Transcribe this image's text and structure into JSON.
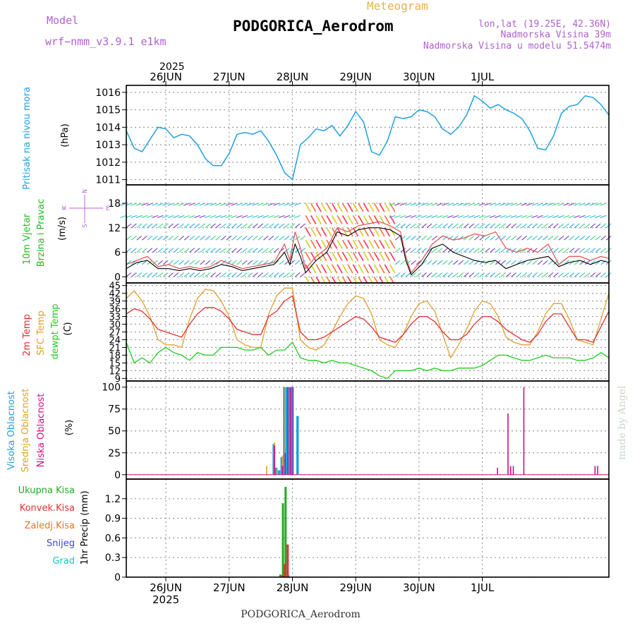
{
  "header": {
    "model_label": "Model",
    "model_name": "wrf−nmm_v3.9.1  e1km",
    "meteogram": "Meteogram",
    "station": "PODGORICA_Aerodrom",
    "lonlat": "lon,lat (19.25E, 42.36N)",
    "elev": "Nadmorska Visina 39m",
    "elev_model": "Nadmorska Visina u modelu 51.5474m",
    "footer_station": "PODGORICA_Aerodrom",
    "credit": "made by Angel",
    "year": "2025"
  },
  "colors": {
    "pressure": "#1fa0e0",
    "wind_label": "#22bb22",
    "compass": "#c060e0",
    "temp2m": "#e03030",
    "sfc": "#e0a030",
    "dew": "#22cc22",
    "cloud_high": "#1fa0e0",
    "cloud_mid": "#e0a030",
    "cloud_low": "#d01080",
    "precip_total": "#22aa22",
    "precip_conv": "#e03030",
    "precip_frozen": "#f07020",
    "snow": "#4040e0",
    "hail": "#20c0c0"
  },
  "chart_data": [
    {
      "type": "line",
      "name": "pressure",
      "ylabel_1": "Pritisak na nivou mora",
      "ylabel_2": "(hPa)",
      "yticks": [
        1011,
        1012,
        1013,
        1014,
        1015,
        1016
      ],
      "ylim": [
        1010.7,
        1016.4
      ],
      "x": [
        0,
        3,
        6,
        9,
        12,
        15,
        18,
        21,
        24,
        27,
        30,
        33,
        36,
        39,
        42,
        45,
        48,
        51,
        54,
        57,
        60,
        63,
        66,
        69,
        72,
        75,
        78,
        81,
        84,
        87,
        90,
        93,
        96,
        99,
        102,
        105,
        108,
        111,
        114,
        117,
        120,
        123,
        126,
        129,
        132,
        135,
        138,
        141,
        144,
        147,
        150,
        153,
        156,
        159,
        162,
        165,
        168,
        171,
        174,
        177,
        180,
        183
      ],
      "series": [
        {
          "name": "pressure",
          "values": [
            1013.8,
            1012.8,
            1012.6,
            1013.3,
            1014.0,
            1013.9,
            1013.4,
            1013.6,
            1013.5,
            1013.0,
            1012.2,
            1011.8,
            1011.8,
            1012.5,
            1013.6,
            1013.7,
            1013.6,
            1013.8,
            1013.2,
            1012.4,
            1011.4,
            1011.0,
            1013.0,
            1013.4,
            1013.9,
            1013.8,
            1014.1,
            1013.5,
            1014.1,
            1014.9,
            1014.3,
            1012.6,
            1012.4,
            1013.2,
            1014.6,
            1014.5,
            1014.6,
            1015.0,
            1014.9,
            1014.6,
            1013.9,
            1013.6,
            1014.0,
            1014.7,
            1015.8,
            1015.5,
            1015.1,
            1015.3,
            1015.0,
            1014.8,
            1014.5,
            1013.8,
            1012.8,
            1012.7,
            1013.5,
            1014.8,
            1015.2,
            1015.3,
            1015.8,
            1015.7,
            1015.3,
            1014.7
          ]
        }
      ]
    },
    {
      "type": "line",
      "name": "wind",
      "ylabel_1": "10m Vjetar",
      "ylabel_2": "Brzina i Pravac",
      "ylabel_3": "(m/s)",
      "compass": {
        "n": "N",
        "s": "S",
        "w": "W",
        "e": "E"
      },
      "yticks": [
        0,
        6,
        12,
        18
      ],
      "ylim": [
        -1.5,
        22.5
      ],
      "x": [
        0,
        4,
        8,
        12,
        16,
        20,
        24,
        28,
        32,
        36,
        40,
        44,
        48,
        52,
        56,
        60,
        62,
        64,
        66,
        68,
        72,
        76,
        80,
        84,
        88,
        92,
        96,
        100,
        104,
        106,
        108,
        112,
        116,
        120,
        124,
        128,
        132,
        136,
        140,
        144,
        148,
        152,
        156,
        160,
        164,
        168,
        172,
        176,
        180,
        183
      ],
      "series": [
        {
          "name": "speed",
          "values": [
            2,
            3.5,
            4,
            2,
            2,
            1.5,
            2,
            1.5,
            2,
            3,
            2.5,
            1.5,
            2,
            2.5,
            3,
            6,
            3,
            8,
            5,
            1,
            4,
            6,
            11,
            10,
            11.5,
            12,
            12,
            11.5,
            10,
            4,
            0.5,
            3,
            7,
            8,
            6,
            5,
            4,
            3.5,
            4,
            2,
            3,
            4,
            4.5,
            5,
            2.5,
            3.5,
            4,
            3,
            4,
            3.5
          ]
        },
        {
          "name": "gust",
          "values": [
            3,
            4,
            5,
            2.5,
            3,
            2,
            2.5,
            2,
            2.5,
            4,
            3,
            2,
            2.5,
            3,
            3.5,
            8,
            4,
            11,
            7,
            2,
            5,
            7,
            12,
            11,
            12.5,
            13,
            13.5,
            12.5,
            11,
            5,
            1,
            4,
            8,
            10,
            9,
            9.5,
            10.5,
            10,
            11,
            7,
            6,
            7,
            6,
            8,
            3,
            5,
            5,
            4,
            5,
            4.5
          ]
        }
      ]
    },
    {
      "type": "line",
      "name": "temperature",
      "ylabel_1": "2m Temp",
      "ylabel_2": "SFC Temp",
      "ylabel_3": "dewpt Temp",
      "ylabel_4": "(C)",
      "yticks": [
        9,
        12,
        15,
        18,
        21,
        24,
        27,
        30,
        33,
        36,
        39,
        42,
        45
      ],
      "ylim": [
        8,
        46
      ],
      "x": [
        0,
        3,
        6,
        9,
        12,
        15,
        18,
        21,
        24,
        27,
        30,
        33,
        36,
        39,
        42,
        45,
        48,
        51,
        54,
        57,
        60,
        63,
        66,
        69,
        72,
        75,
        78,
        81,
        84,
        87,
        90,
        93,
        96,
        99,
        102,
        105,
        108,
        111,
        114,
        117,
        120,
        123,
        126,
        129,
        132,
        135,
        138,
        141,
        144,
        147,
        150,
        153,
        156,
        159,
        162,
        165,
        168,
        171,
        174,
        177,
        180,
        183
      ],
      "series": [
        {
          "name": "2m Temp",
          "values": [
            34,
            36,
            35,
            32,
            28,
            27,
            26,
            25,
            30,
            34,
            36.5,
            36.5,
            35,
            32,
            28,
            27,
            26,
            26,
            33,
            35,
            39,
            41,
            27,
            24,
            24,
            25,
            27,
            29,
            31,
            33,
            32,
            29,
            25,
            24,
            23,
            26,
            30,
            33,
            33,
            31,
            27,
            24,
            24,
            26,
            30,
            33,
            33,
            31,
            28,
            26,
            24,
            23,
            26,
            31,
            34,
            34,
            29,
            24,
            24,
            23,
            29,
            35
          ]
        },
        {
          "name": "SFC Temp",
          "values": [
            40,
            43,
            39,
            33,
            24,
            22,
            22,
            21,
            32,
            40,
            43.5,
            43,
            39,
            33,
            24,
            22,
            21,
            21,
            34,
            41,
            44,
            44,
            24,
            21,
            20,
            22,
            27,
            33,
            38,
            41,
            40,
            34,
            24,
            22,
            21,
            26,
            33,
            38,
            39,
            35,
            26,
            17,
            22,
            28,
            35,
            39,
            38,
            33,
            25,
            23,
            22,
            22,
            27,
            34,
            38,
            38,
            32,
            24,
            23,
            22,
            32,
            42
          ]
        },
        {
          "name": "dewpt Temp",
          "values": [
            23,
            15,
            17,
            15,
            19,
            21,
            19,
            18,
            16,
            19,
            18,
            18,
            21,
            21,
            21,
            20,
            20,
            21,
            18,
            20,
            20,
            23,
            17,
            16,
            16,
            15,
            16,
            15,
            15,
            14,
            13,
            12,
            10,
            9,
            12,
            12,
            12,
            13,
            12,
            13,
            12,
            12,
            13,
            13,
            13,
            14,
            16,
            18,
            18,
            17,
            16,
            16,
            17,
            18,
            17,
            17,
            17,
            16,
            16,
            17,
            19,
            17
          ]
        }
      ]
    },
    {
      "type": "bar",
      "name": "cloud",
      "ylabel_1": "Visoka Oblacnost",
      "ylabel_2": "Srednja Oblacnost",
      "ylabel_3": "Niska Oblacnost",
      "ylabel_4": "(%)",
      "yticks": [
        0,
        25,
        50,
        75,
        100
      ],
      "ylim": [
        -5,
        107
      ],
      "series": [
        {
          "name": "Visoka Oblacnost",
          "x": [
            56,
            57,
            58,
            59,
            60,
            61,
            62,
            63,
            65
          ],
          "values": [
            35,
            8,
            5,
            20,
            100,
            100,
            100,
            100,
            67
          ]
        },
        {
          "name": "Srednja Oblacnost",
          "x": [
            53,
            56,
            57,
            59,
            60
          ],
          "values": [
            10,
            37,
            8,
            22,
            100
          ]
        },
        {
          "name": "Niska Oblacnost",
          "x": [
            55.5,
            58.5,
            59.5,
            60.5,
            61.5,
            62.5,
            140,
            144,
            145,
            146,
            150,
            177,
            178
          ],
          "values": [
            33,
            10,
            25,
            100,
            100,
            100,
            8,
            70,
            10,
            10,
            100,
            10,
            10
          ]
        }
      ]
    },
    {
      "type": "bar",
      "name": "precip",
      "ylabel_1": "1hr Precip (mm)",
      "legend": [
        "Ukupna Kisa",
        "Konvek.Kisa",
        "Zaledj.Kisa",
        "Snijeg",
        "Grad"
      ],
      "yticks": [
        0,
        0.3,
        0.6,
        0.9,
        1.2
      ],
      "ylim": [
        0,
        1.5
      ],
      "series": [
        {
          "name": "Ukupna Kisa",
          "x": [
            58,
            59,
            60,
            61
          ],
          "values": [
            0.04,
            1.13,
            1.38,
            0.03
          ]
        },
        {
          "name": "Konvek.Kisa",
          "x": [
            58,
            59,
            60
          ],
          "values": [
            0.03,
            0.2,
            0.5
          ]
        }
      ]
    },
    {
      "type": "time-axis",
      "days": [
        "26JUN",
        "27JUN",
        "28JUN",
        "29JUN",
        "30JUN",
        "1JUL"
      ],
      "day_hours": [
        15,
        39,
        63,
        87,
        111,
        135
      ],
      "xlim": [
        0,
        183
      ]
    }
  ]
}
